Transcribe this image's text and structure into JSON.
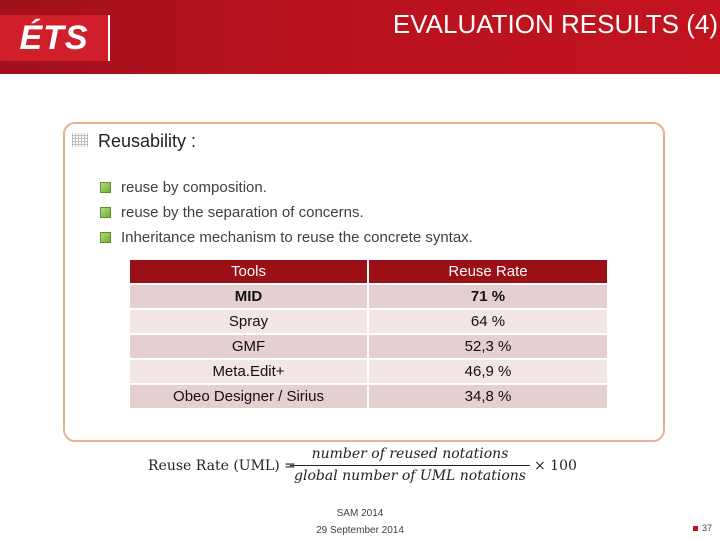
{
  "header": {
    "logo_text": "ÉTS",
    "title": "EVALUATION RESULTS (4)"
  },
  "content": {
    "heading": "Reusability :",
    "bullets": [
      "reuse by composition.",
      "reuse by the separation of concerns.",
      "Inheritance mechanism to reuse the concrete syntax."
    ]
  },
  "table": {
    "headers": [
      "Tools",
      "Reuse Rate"
    ],
    "rows": [
      [
        "MID",
        "71 %"
      ],
      [
        "Spray",
        "64 %"
      ],
      [
        "GMF",
        "52,3 %"
      ],
      [
        "Meta.Edit+",
        "46,9 %"
      ],
      [
        "Obeo Designer / Sirius",
        "34,8 %"
      ]
    ]
  },
  "formula": {
    "lhs": "Reuse Rate (UML) =",
    "numerator": "number of reused notations",
    "denominator": "global number of UML notations",
    "rhs": "× 100"
  },
  "footer": {
    "conference": "SAM 2014",
    "date": "29 September 2014",
    "page": "37"
  },
  "colors": {
    "header_red": "#c2131f",
    "table_header": "#9b0f17",
    "row_dark": "#e6cfd0",
    "row_light": "#f1e5e6",
    "panel_border": "#e7b28e",
    "bullet_green": "#6fae2f"
  }
}
